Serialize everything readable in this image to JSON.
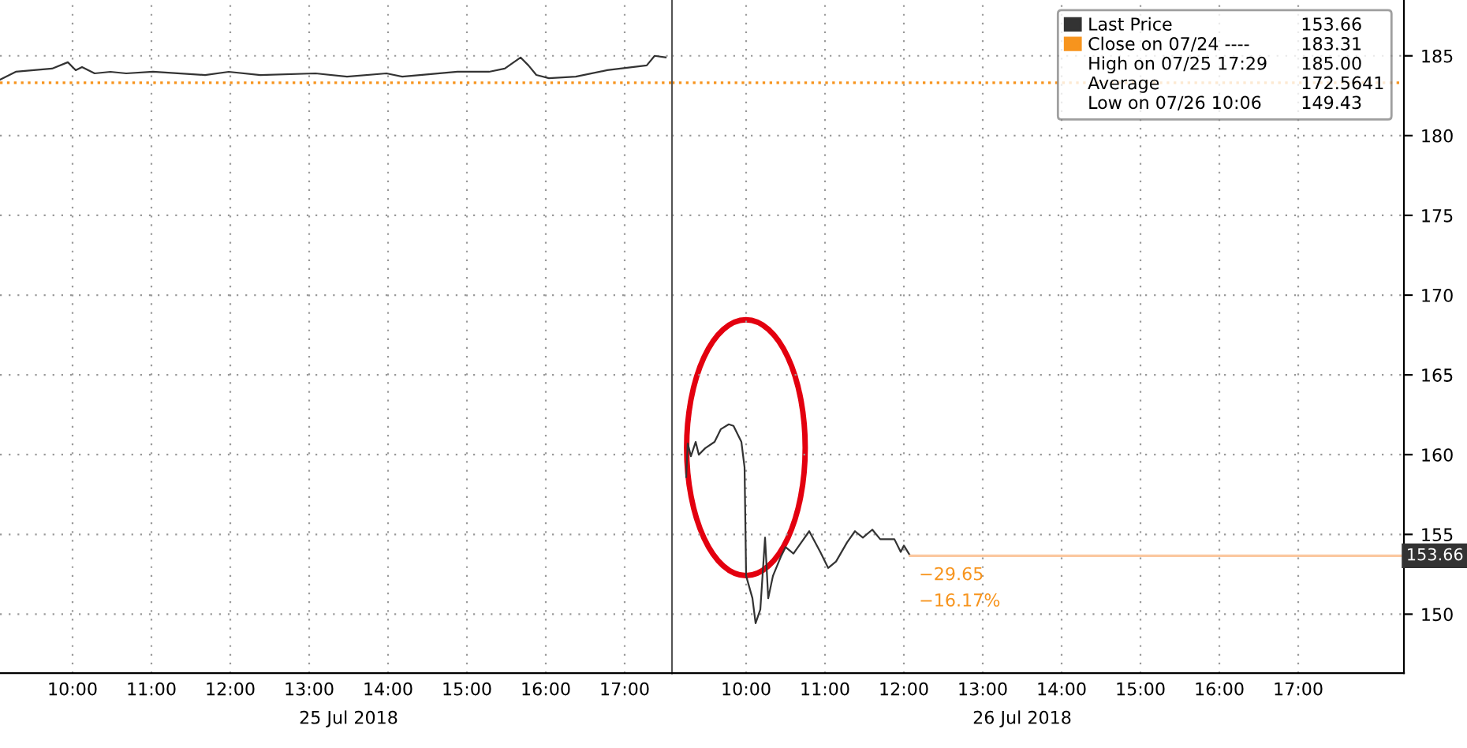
{
  "chart_data": [
    {
      "type": "line",
      "x": [
        9.08,
        9.28,
        9.74,
        9.94,
        10.04,
        10.12,
        10.28,
        10.48,
        10.68,
        11.02,
        11.68,
        11.98,
        12.38,
        13.08,
        13.48,
        13.98,
        14.18,
        14.88,
        15.28,
        15.48,
        15.68,
        15.78,
        15.88,
        16.04,
        16.38,
        16.78,
        17.28,
        17.38,
        17.52
      ],
      "series": [
        {
          "color": "#333333",
          "values": [
            183.5,
            184.0,
            184.2,
            184.6,
            184.1,
            184.3,
            183.9,
            184.0,
            183.9,
            184.0,
            183.8,
            184.0,
            183.8,
            183.9,
            183.7,
            183.9,
            183.7,
            184.0,
            184.0,
            184.2,
            184.9,
            184.4,
            183.8,
            183.6,
            183.7,
            184.1,
            184.4,
            185.0,
            184.9
          ]
        }
      ],
      "xlim": [
        9.08,
        17.6
      ],
      "xticks": [
        {
          "value": 10,
          "label": "10:00"
        },
        {
          "value": 11,
          "label": "11:00"
        },
        {
          "value": 12,
          "label": "12:00"
        },
        {
          "value": 13,
          "label": "13:00"
        },
        {
          "value": 14,
          "label": "14:00"
        },
        {
          "value": 15,
          "label": "15:00"
        },
        {
          "value": 16,
          "label": "16:00"
        },
        {
          "value": 17,
          "label": "17:00"
        }
      ],
      "ylim": [
        146.3,
        188.5
      ],
      "yticks": [
        150,
        155,
        160,
        165,
        170,
        175,
        180,
        185
      ],
      "tick_labels": "x",
      "grid": true,
      "ref_lines": [
        {
          "axis": "y",
          "value": 183.31,
          "color": "#f7941d",
          "line_style": "dotted"
        }
      ],
      "annotations": [
        "25 Jul 2018"
      ]
    },
    {
      "type": "line",
      "x": [
        9.24,
        9.26,
        9.3,
        9.36,
        9.4,
        9.48,
        9.6,
        9.68,
        9.78,
        9.84,
        9.94,
        9.98,
        10.0,
        10.08,
        10.12,
        10.18,
        10.24,
        10.28,
        10.34,
        10.44,
        10.5,
        10.6,
        10.7,
        10.8,
        10.94,
        11.04,
        11.14,
        11.28,
        11.38,
        11.48,
        11.6,
        11.7,
        11.88,
        11.96,
        12.0,
        12.08
      ],
      "series": [
        {
          "name": "Last Price",
          "color": "#333333",
          "values": [
            158.6,
            160.7,
            159.9,
            160.8,
            160.0,
            160.4,
            160.8,
            161.6,
            161.9,
            161.8,
            160.8,
            159.2,
            152.4,
            151.0,
            149.43,
            150.3,
            154.8,
            151.0,
            152.4,
            153.6,
            154.2,
            153.8,
            154.5,
            155.2,
            153.9,
            152.9,
            153.3,
            154.5,
            155.2,
            154.8,
            155.3,
            154.7,
            154.7,
            153.9,
            154.3,
            153.66
          ]
        }
      ],
      "xlim": [
        9.06,
        18.34
      ],
      "xticks": [
        {
          "value": 10,
          "label": "10:00"
        },
        {
          "value": 11,
          "label": "11:00"
        },
        {
          "value": 12,
          "label": "12:00"
        },
        {
          "value": 13,
          "label": "13:00"
        },
        {
          "value": 14,
          "label": "14:00"
        },
        {
          "value": 15,
          "label": "15:00"
        },
        {
          "value": 16,
          "label": "16:00"
        },
        {
          "value": 17,
          "label": "17:00"
        }
      ],
      "ylim": [
        146.3,
        188.5
      ],
      "yticks": [
        150,
        155,
        160,
        165,
        170,
        175,
        180,
        185
      ],
      "grid": true,
      "legend": "top right",
      "ref_lines": [
        {
          "axis": "y",
          "value": 183.31,
          "label": "Close on 07/24 ----",
          "color": "#f7941d",
          "line_style": "dotted"
        },
        {
          "axis": "y",
          "value": 153.66,
          "label": "153.66",
          "color": "#fbc8a0",
          "line_style": "solid"
        }
      ],
      "annotations": [
        "26 Jul 2018",
        "183.31",
        {
          "text": "−29.65",
          "x": 12.08,
          "y": 153.66
        },
        {
          "text": "−16.17%",
          "x": 12.08,
          "y": 153.66
        },
        "High on 07/25 17:29",
        "185.00",
        "Average",
        "172.5641",
        "Low on 07/26 10:06",
        "149.43"
      ]
    }
  ]
}
